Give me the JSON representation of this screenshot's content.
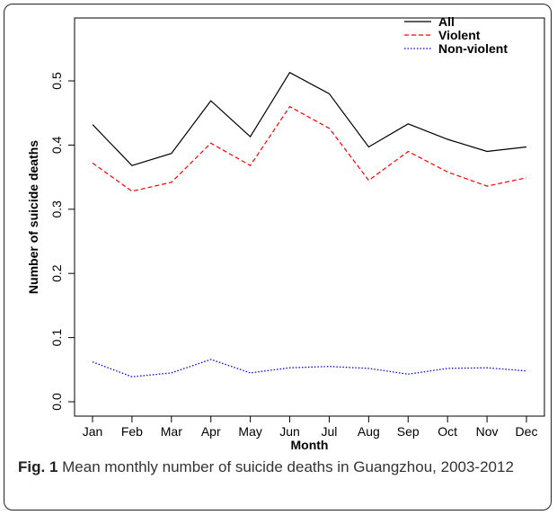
{
  "caption": {
    "label": "Fig. 1",
    "text": "Mean monthly number of suicide deaths in Guangzhou, 2003-2012"
  },
  "chart_data": {
    "type": "line",
    "title": "",
    "xlabel": "Month",
    "ylabel": "Number of suicide deaths",
    "categories": [
      "Jan",
      "Feb",
      "Mar",
      "Apr",
      "May",
      "Jun",
      "Jul",
      "Aug",
      "Sep",
      "Oct",
      "Nov",
      "Dec"
    ],
    "ylim": [
      0,
      0.55
    ],
    "yticks": [
      "0.0",
      "0.1",
      "0.2",
      "0.3",
      "0.4",
      "0.5"
    ],
    "legend_position": "top-right",
    "series": [
      {
        "name": "All",
        "color": "#000000",
        "style": "solid",
        "values": [
          0.432,
          0.368,
          0.387,
          0.469,
          0.413,
          0.513,
          0.48,
          0.397,
          0.433,
          0.409,
          0.39,
          0.397
        ]
      },
      {
        "name": "Violent",
        "color": "#ff0000",
        "style": "dashed",
        "values": [
          0.372,
          0.328,
          0.342,
          0.403,
          0.368,
          0.46,
          0.426,
          0.345,
          0.39,
          0.358,
          0.336,
          0.349
        ]
      },
      {
        "name": "Non-violent",
        "color": "#0000ff",
        "style": "dotted",
        "values": [
          0.062,
          0.039,
          0.045,
          0.066,
          0.045,
          0.053,
          0.055,
          0.052,
          0.043,
          0.052,
          0.053,
          0.048
        ]
      }
    ]
  }
}
